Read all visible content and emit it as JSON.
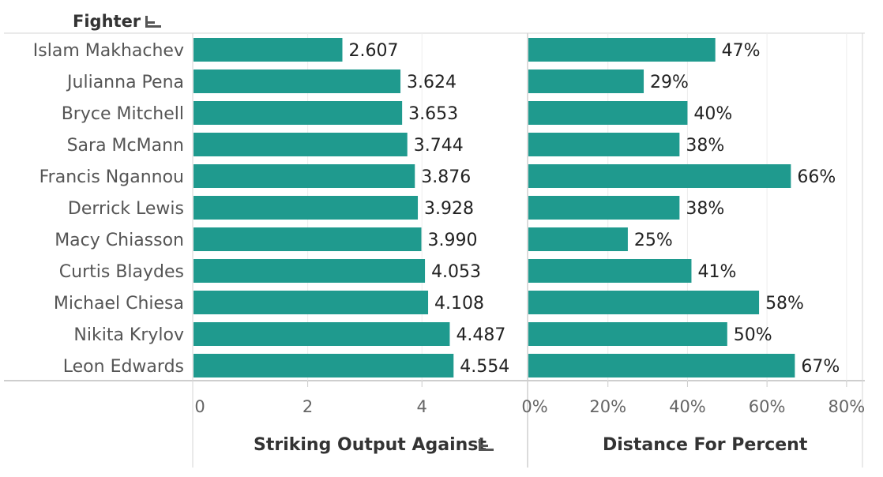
{
  "header": {
    "dimension_label": "Fighter",
    "sort_icon": "sort-descending-icon"
  },
  "chart_data": {
    "type": "bar",
    "categories": [
      "Islam Makhachev",
      "Julianna Pena",
      "Bryce Mitchell",
      "Sara McMann",
      "Francis Ngannou",
      "Derrick Lewis",
      "Macy Chiasson",
      "Curtis Blaydes",
      "Michael Chiesa",
      "Nikita Krylov",
      "Leon Edwards"
    ],
    "bar_color": "#1f9a8e",
    "panels": [
      {
        "measure": "Striking Output Against",
        "sorted": true,
        "xlim": [
          0,
          5.85
        ],
        "ticks": [
          0,
          2,
          4
        ],
        "tick_labels": [
          "0",
          "2",
          "4"
        ],
        "values": [
          2.607,
          3.624,
          3.653,
          3.744,
          3.876,
          3.928,
          3.99,
          4.053,
          4.108,
          4.487,
          4.554
        ],
        "value_labels": [
          "2.607",
          "3.624",
          "3.653",
          "3.744",
          "3.876",
          "3.928",
          "3.990",
          "4.053",
          "4.108",
          "4.487",
          "4.554"
        ]
      },
      {
        "measure": "Distance For Percent",
        "sorted": false,
        "xlim": [
          0,
          0.84
        ],
        "ticks": [
          0,
          0.2,
          0.4,
          0.6,
          0.8
        ],
        "tick_labels": [
          "0%",
          "20%",
          "40%",
          "60%",
          "80%"
        ],
        "values": [
          0.47,
          0.29,
          0.4,
          0.38,
          0.66,
          0.38,
          0.25,
          0.41,
          0.58,
          0.5,
          0.67
        ],
        "value_labels": [
          "47%",
          "29%",
          "40%",
          "38%",
          "66%",
          "38%",
          "25%",
          "41%",
          "58%",
          "50%",
          "67%"
        ]
      }
    ]
  }
}
